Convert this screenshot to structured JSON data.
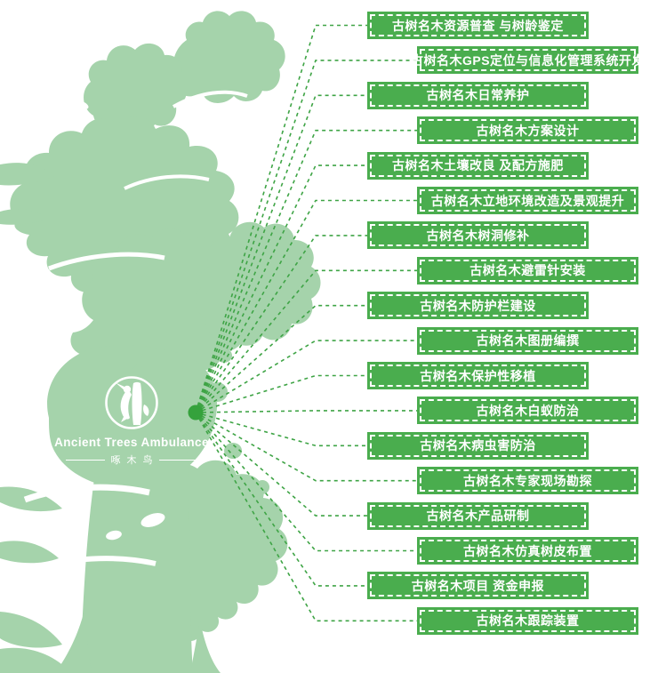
{
  "logo": {
    "name": "Ancient Trees Ambulance",
    "tagline": "啄木鸟"
  },
  "services": [
    "古树名木资源普查 与树龄鉴定",
    "古树名木GPS定位与信息化管理系统开发",
    "古树名木日常养护",
    "古树名木方案设计",
    "古树名木土壤改良 及配方施肥",
    "古树名木立地环境改造及景观提升",
    "古树名木树洞修补",
    "古树名木避雷针安装",
    "古树名木防护栏建设",
    "古树名木图册编撰",
    "古树名木保护性移植",
    "古树名木白蚁防治",
    "古树名木病虫害防治",
    "古树名木专家现场勘探",
    "古树名木产品研制",
    "古树名木仿真树皮布置",
    "古树名木项目 资金申报",
    "古树名木跟踪装置"
  ],
  "colors": {
    "tree_silhouette": "#a5d3ab",
    "label_background": "#4aad4e",
    "label_text": "#ffffff",
    "connector_line": "#3ea445",
    "hub_dot": "#35a23c",
    "logo_white": "#ffffff"
  }
}
